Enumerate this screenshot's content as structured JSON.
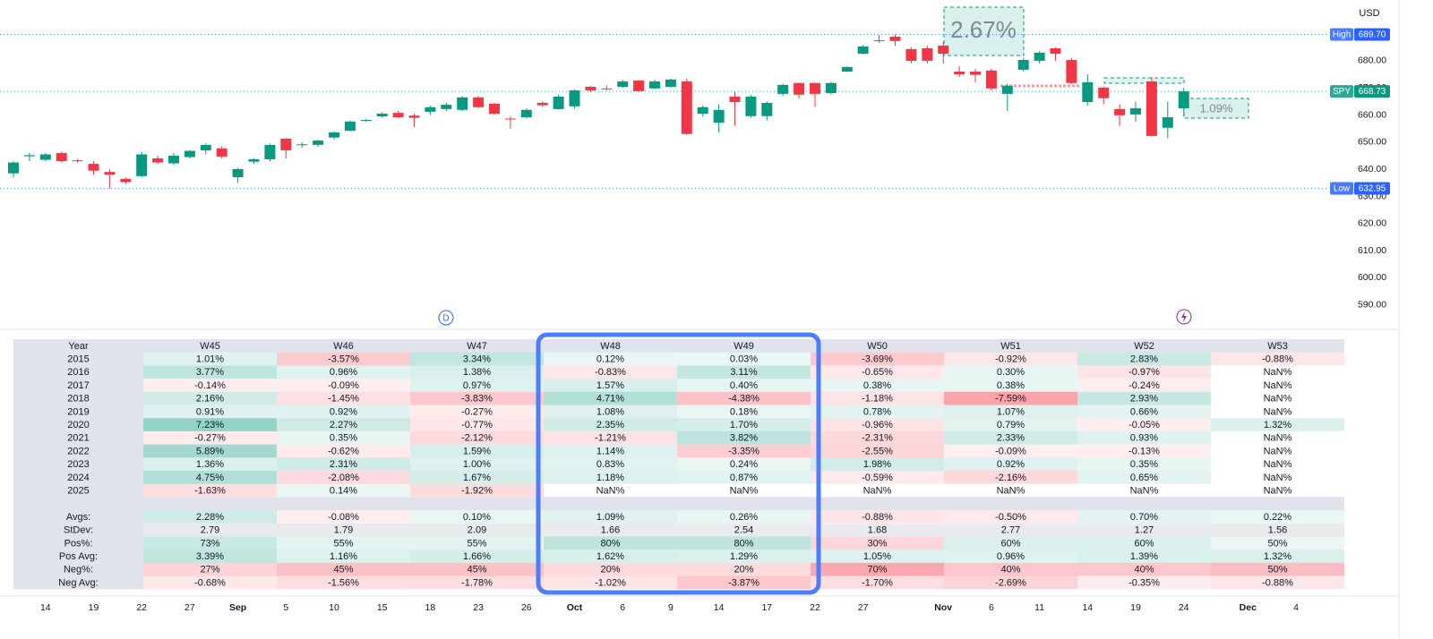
{
  "chart_data": {
    "type": "candlestick",
    "currency": "USD",
    "up_color": "#089981",
    "down_color": "#f23645",
    "categories": [
      null,
      null,
      "14",
      null,
      null,
      "19",
      null,
      null,
      "22",
      null,
      null,
      "27",
      null,
      null,
      "Sep",
      null,
      null,
      "5",
      null,
      null,
      "10",
      null,
      null,
      "15",
      null,
      null,
      "18",
      null,
      null,
      "23",
      null,
      null,
      "26",
      null,
      null,
      "Oct",
      null,
      null,
      "6",
      null,
      null,
      "9",
      null,
      null,
      "14",
      null,
      null,
      "17",
      null,
      null,
      "22",
      null,
      null,
      "27",
      null,
      null,
      null,
      null,
      "Nov",
      null,
      null,
      "6",
      null,
      null,
      "11",
      null,
      null,
      "14",
      null,
      null,
      "19",
      null,
      null,
      "24",
      null,
      null,
      null,
      "Dec",
      null,
      null,
      "4"
    ],
    "open": [
      638.5,
      644.8,
      643.5,
      646,
      643.3,
      642,
      639,
      636.5,
      637.5,
      644,
      642.2,
      644.5,
      647,
      647.7,
      637.1,
      642.8,
      643.7,
      651.3,
      649,
      649,
      651.7,
      654.2,
      657.9,
      659.5,
      660.8,
      659.8,
      661.2,
      662.2,
      661.9,
      666.5,
      664.2,
      658.7,
      659.2,
      664.5,
      662.2,
      663.2,
      670.4,
      669.8,
      670.4,
      672.7,
      669.8,
      670.4,
      672.4,
      660.5,
      657.2,
      666.8,
      659.6,
      659.6,
      667.8,
      671.8,
      671.8,
      668.1,
      676,
      682.6,
      687.5,
      688.9,
      684.3,
      684.6,
      685.6,
      676,
      676,
      676.4,
      667.8,
      676.7,
      680,
      684.6,
      680.3,
      664.8,
      670.1,
      662.2,
      660.2,
      672.4,
      655.3,
      662.5,
      null,
      null,
      null,
      null,
      null,
      null,
      null
    ],
    "high": [
      643,
      646,
      646,
      646.5,
      643.8,
      643,
      640,
      637,
      646.5,
      645,
      646,
      647,
      649.5,
      648.5,
      640.5,
      644,
      649.5,
      651.5,
      650,
      651,
      654,
      658,
      658.5,
      661,
      661.5,
      660.5,
      663.5,
      664.5,
      667,
      667,
      664.5,
      659.5,
      662.5,
      665,
      667.5,
      669.5,
      670.8,
      671,
      673,
      673,
      673,
      673.5,
      673.5,
      663.5,
      664,
      668.5,
      667.5,
      665,
      671.5,
      672,
      672,
      672.3,
      678,
      685.8,
      689.5,
      689.7,
      685,
      685.5,
      687,
      678,
      677,
      677,
      671.5,
      681,
      683.5,
      685,
      681,
      675,
      670.5,
      664,
      665,
      674,
      665,
      670,
      null,
      null,
      null,
      null,
      null,
      null,
      null
    ],
    "low": [
      637,
      643,
      643,
      642.5,
      642.5,
      638,
      632.95,
      634.5,
      637,
      642,
      641.5,
      644,
      645.5,
      644,
      635,
      642,
      643,
      644,
      648,
      648.3,
      651,
      654,
      657.5,
      659,
      658.8,
      655.5,
      660,
      661.5,
      661.5,
      662.5,
      660,
      655,
      658.7,
      663,
      662,
      662.5,
      668.5,
      669,
      670,
      668.5,
      669.5,
      670,
      652.8,
      659.5,
      653.5,
      656,
      659,
      658,
      667,
      666,
      663,
      667.5,
      675.8,
      682.3,
      686.5,
      685.5,
      679,
      679,
      679,
      674,
      672,
      669,
      661.5,
      676,
      679,
      680,
      671.5,
      663.5,
      664,
      656,
      657.5,
      652,
      651.5,
      659.5,
      null,
      null,
      null,
      null,
      null,
      null,
      null
    ],
    "close": [
      642.5,
      645.2,
      645.5,
      643,
      643,
      639.5,
      638,
      635.3,
      645.5,
      642.5,
      645,
      646.8,
      649,
      644.7,
      640.1,
      643.7,
      649,
      647,
      649.2,
      650.6,
      653.6,
      657.6,
      658.2,
      660.5,
      659.2,
      659,
      662.9,
      663.8,
      666.5,
      662.9,
      660.5,
      658.5,
      661.9,
      663.6,
      666.8,
      669.1,
      669.1,
      669.6,
      672.4,
      668.8,
      672.4,
      673.1,
      653,
      662.9,
      661.9,
      664.8,
      666.8,
      664.5,
      671.1,
      667.5,
      667.8,
      671.8,
      677.7,
      685.3,
      687.6,
      687.3,
      680,
      680,
      682.6,
      675,
      674.8,
      669.8,
      670.8,
      680.3,
      683,
      682.6,
      671.8,
      672.1,
      666.2,
      659.9,
      662.5,
      652.3,
      659.2,
      668.73,
      null,
      null,
      null,
      null,
      null,
      null,
      null
    ],
    "ylim": [
      582,
      702.4
    ],
    "yticks": [
      {
        "value": 590,
        "label": "590.00"
      },
      {
        "value": 600,
        "label": "600.00"
      },
      {
        "value": 610,
        "label": "610.00"
      },
      {
        "value": 620,
        "label": "620.00"
      },
      {
        "value": 630,
        "label": "630.00"
      },
      {
        "value": 640,
        "label": "640.00"
      },
      {
        "value": 650,
        "label": "650.00"
      },
      {
        "value": 660,
        "label": "660.00"
      },
      {
        "value": 670,
        "label": "670.00"
      },
      {
        "value": 680,
        "label": "680.00"
      }
    ],
    "grid": false,
    "price_lines": [
      {
        "name": "High",
        "value": 689.7,
        "label": "689.70",
        "color": "#2962ff"
      },
      {
        "name": "SPY",
        "value": 668.73,
        "label": "668.73",
        "color": "#089981"
      },
      {
        "name": "Low",
        "value": 632.95,
        "label": "632.95",
        "color": "#2962ff"
      }
    ],
    "measures": [
      "2.67%",
      "1.09%"
    ],
    "marker": "D"
  },
  "table": {
    "header": [
      "Year",
      "W45",
      "W46",
      "W47",
      "W48",
      "W49",
      "W50",
      "W51",
      "W52",
      "W53"
    ],
    "rows": [
      [
        "2015",
        "1.01%",
        "-3.57%",
        "3.34%",
        "0.12%",
        "0.03%",
        "-3.69%",
        "-0.92%",
        "2.83%",
        "-0.88%"
      ],
      [
        "2016",
        "3.77%",
        "0.96%",
        "1.38%",
        "-0.83%",
        "3.11%",
        "-0.65%",
        "0.30%",
        "-0.97%",
        "NaN%"
      ],
      [
        "2017",
        "-0.14%",
        "-0.09%",
        "0.97%",
        "1.57%",
        "0.40%",
        "0.38%",
        "0.38%",
        "-0.24%",
        "NaN%"
      ],
      [
        "2018",
        "2.16%",
        "-1.45%",
        "-3.83%",
        "4.71%",
        "-4.38%",
        "-1.18%",
        "-7.59%",
        "2.93%",
        "NaN%"
      ],
      [
        "2019",
        "0.91%",
        "0.92%",
        "-0.27%",
        "1.08%",
        "0.18%",
        "0.78%",
        "1.07%",
        "0.66%",
        "NaN%"
      ],
      [
        "2020",
        "7.23%",
        "2.27%",
        "-0.77%",
        "2.35%",
        "1.70%",
        "-0.96%",
        "0.79%",
        "-0.05%",
        "1.32%"
      ],
      [
        "2021",
        "-0.27%",
        "0.35%",
        "-2.12%",
        "-1.21%",
        "3.82%",
        "-2.31%",
        "2.33%",
        "0.93%",
        "NaN%"
      ],
      [
        "2022",
        "5.89%",
        "-0.62%",
        "1.59%",
        "1.14%",
        "-3.35%",
        "-2.55%",
        "-0.09%",
        "-0.13%",
        "NaN%"
      ],
      [
        "2023",
        "1.36%",
        "2.31%",
        "1.00%",
        "0.83%",
        "0.24%",
        "1.98%",
        "0.92%",
        "0.35%",
        "NaN%"
      ],
      [
        "2024",
        "4.75%",
        "-2.08%",
        "1.67%",
        "1.18%",
        "0.87%",
        "-0.59%",
        "-2.16%",
        "0.65%",
        "NaN%"
      ],
      [
        "2025",
        "-1.63%",
        "0.14%",
        "-1.92%",
        "NaN%",
        "NaN%",
        "NaN%",
        "NaN%",
        "NaN%",
        "NaN%"
      ]
    ],
    "summary": [
      [
        "Avgs:",
        "2.28%",
        "-0.08%",
        "0.10%",
        "1.09%",
        "0.26%",
        "-0.88%",
        "-0.50%",
        "0.70%",
        "0.22%"
      ],
      [
        "StDev:",
        "2.79",
        "1.79",
        "2.09",
        "1.66",
        "2.54",
        "1.68",
        "2.77",
        "1.27",
        "1.56"
      ],
      [
        "Pos%:",
        "73%",
        "55%",
        "55%",
        "80%",
        "80%",
        "30%",
        "60%",
        "60%",
        "50%"
      ],
      [
        "Pos Avg:",
        "3.39%",
        "1.16%",
        "1.66%",
        "1.62%",
        "1.29%",
        "1.05%",
        "0.96%",
        "1.39%",
        "1.32%"
      ],
      [
        "Neg%:",
        "27%",
        "45%",
        "45%",
        "20%",
        "20%",
        "70%",
        "40%",
        "40%",
        "50%"
      ],
      [
        "Neg Avg:",
        "-0.68%",
        "-1.56%",
        "-1.78%",
        "-1.02%",
        "-3.87%",
        "-1.70%",
        "-2.69%",
        "-0.35%",
        "-0.88%"
      ]
    ]
  }
}
